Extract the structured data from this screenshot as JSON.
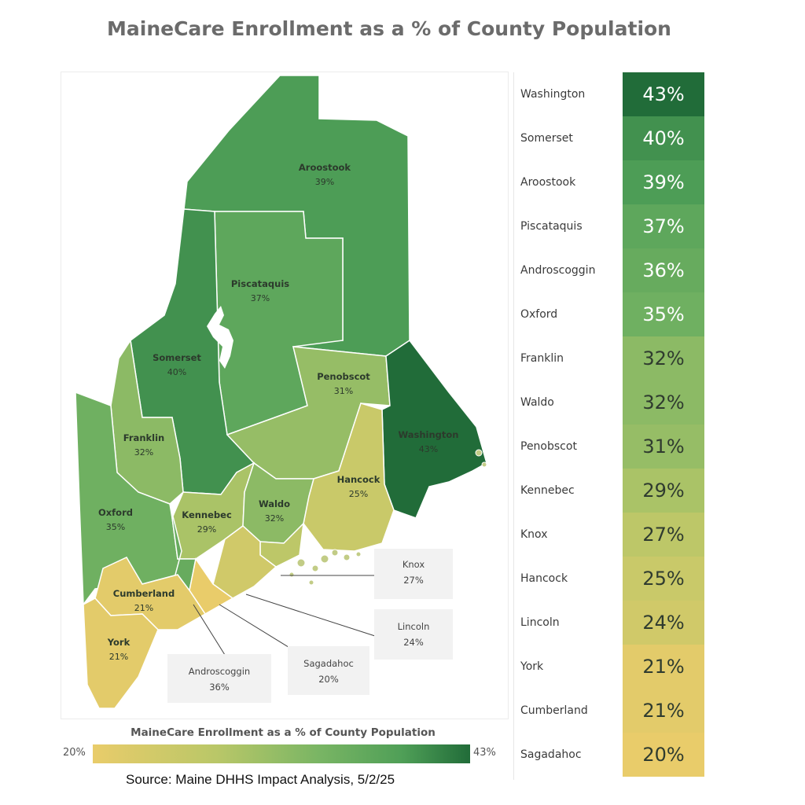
{
  "title": "MaineCare Enrollment as a % of County Population",
  "colors": {
    "scale_min": "#e9cc6a",
    "scale_max": "#216c39",
    "label_dark": "#2c3a2c"
  },
  "legend": {
    "title": "MaineCare Enrollment as a % of County Population",
    "min_label": "20%",
    "max_label": "43%"
  },
  "source": "Source: Maine DHHS Impact Analysis, 5/2/25",
  "callouts": [
    {
      "name": "Knox",
      "value": "27%"
    },
    {
      "name": "Lincoln",
      "value": "24%"
    },
    {
      "name": "Sagadahoc",
      "value": "20%"
    },
    {
      "name": "Androscoggin",
      "value": "36%"
    }
  ],
  "chart_data": {
    "type": "table",
    "title": "MaineCare Enrollment as a % of County Population",
    "color_scale": [
      20,
      43
    ],
    "categories": [
      "Washington",
      "Somerset",
      "Aroostook",
      "Piscataquis",
      "Androscoggin",
      "Oxford",
      "Franklin",
      "Waldo",
      "Penobscot",
      "Kennebec",
      "Knox",
      "Hancock",
      "Lincoln",
      "York",
      "Cumberland",
      "Sagadahoc"
    ],
    "values": [
      43,
      40,
      39,
      37,
      36,
      35,
      32,
      32,
      31,
      29,
      27,
      25,
      24,
      21,
      21,
      20
    ],
    "labels": [
      "43%",
      "40%",
      "39%",
      "37%",
      "36%",
      "35%",
      "32%",
      "32%",
      "31%",
      "29%",
      "27%",
      "25%",
      "24%",
      "21%",
      "21%",
      "20%"
    ],
    "map_labels": [
      {
        "name": "Aroostook",
        "value": "39%"
      },
      {
        "name": "Piscataquis",
        "value": "37%"
      },
      {
        "name": "Somerset",
        "value": "40%"
      },
      {
        "name": "Penobscot",
        "value": "31%"
      },
      {
        "name": "Washington",
        "value": "43%"
      },
      {
        "name": "Franklin",
        "value": "32%"
      },
      {
        "name": "Hancock",
        "value": "25%"
      },
      {
        "name": "Oxford",
        "value": "35%"
      },
      {
        "name": "Kennebec",
        "value": "29%"
      },
      {
        "name": "Waldo",
        "value": "32%"
      },
      {
        "name": "Cumberland",
        "value": "21%"
      },
      {
        "name": "York",
        "value": "21%"
      }
    ]
  }
}
